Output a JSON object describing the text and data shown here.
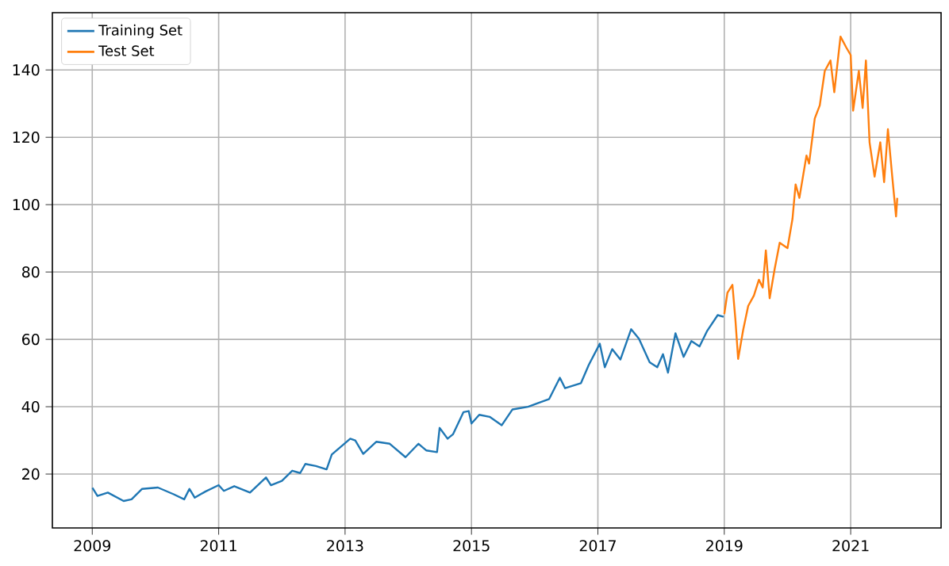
{
  "chart_data": {
    "type": "line",
    "xlim": [
      "2008-05-15",
      "2022-06-07"
    ],
    "ylim": [
      4,
      157
    ],
    "xticks": [
      "2009",
      "2011",
      "2013",
      "2015",
      "2017",
      "2019",
      "2021"
    ],
    "yticks": [
      20,
      40,
      60,
      80,
      100,
      120,
      140
    ],
    "grid": true,
    "legend": "top left",
    "marker": "none",
    "line_style": "solid",
    "series": [
      {
        "name": "Training Set",
        "color": "#1f77b4",
        "x": [
          "2009-01-02",
          "2009-01-31",
          "2009-04-01",
          "2009-07-01",
          "2009-08-16",
          "2009-10-16",
          "2010-01-15",
          "2010-04-16",
          "2010-06-16",
          "2010-07-16",
          "2010-08-16",
          "2010-10-16",
          "2011-01-01",
          "2011-01-31",
          "2011-04-01",
          "2011-07-01",
          "2011-10-01",
          "2011-10-30",
          "2012-01-01",
          "2012-03-01",
          "2012-04-16",
          "2012-05-16",
          "2012-07-16",
          "2012-09-16",
          "2012-10-16",
          "2013-01-31",
          "2013-03-01",
          "2013-04-16",
          "2013-07-01",
          "2013-09-16",
          "2013-12-16",
          "2014-03-01",
          "2014-04-16",
          "2014-06-16",
          "2014-07-01",
          "2014-08-16",
          "2014-09-16",
          "2014-11-16",
          "2014-12-16",
          "2015-01-01",
          "2015-02-15",
          "2015-04-16",
          "2015-06-25",
          "2015-08-26",
          "2015-11-24",
          "2016-03-25",
          "2016-05-26",
          "2016-06-25",
          "2016-09-25",
          "2016-11-10",
          "2017-01-12",
          "2017-02-10",
          "2017-03-25",
          "2017-05-11",
          "2017-07-12",
          "2017-08-26",
          "2017-10-27",
          "2017-12-10",
          "2018-01-12",
          "2018-02-10",
          "2018-03-25",
          "2018-05-11",
          "2018-06-25",
          "2018-08-11",
          "2018-09-25",
          "2018-11-24",
          "2018-12-28"
        ],
        "values": [
          15.9,
          13.5,
          14.5,
          12.0,
          12.5,
          15.6,
          16.0,
          14.0,
          12.5,
          15.6,
          13.0,
          14.8,
          16.7,
          15.0,
          16.4,
          14.5,
          19.0,
          16.7,
          18.0,
          21.0,
          20.3,
          23.0,
          22.4,
          21.4,
          25.8,
          30.5,
          30.0,
          26.0,
          29.6,
          29.0,
          25.0,
          29.0,
          27.0,
          26.5,
          33.7,
          30.5,
          31.8,
          38.4,
          38.7,
          35.0,
          37.6,
          37.0,
          34.5,
          39.2,
          40.0,
          42.3,
          48.6,
          45.5,
          47.0,
          52.5,
          58.7,
          51.7,
          57.1,
          54.0,
          63.0,
          60.2,
          53.2,
          51.7,
          55.6,
          50.1,
          61.8,
          54.8,
          59.5,
          57.9,
          62.6,
          67.2,
          66.7
        ]
      },
      {
        "name": "Test Set",
        "color": "#ff7f0e",
        "x": [
          "2019-01-01",
          "2019-01-19",
          "2019-02-17",
          "2019-03-06",
          "2019-03-22",
          "2019-04-20",
          "2019-05-19",
          "2019-06-21",
          "2019-07-20",
          "2019-08-11",
          "2019-08-29",
          "2019-09-20",
          "2019-10-19",
          "2019-11-17",
          "2020-01-01",
          "2020-01-30",
          "2020-02-17",
          "2020-03-10",
          "2020-04-20",
          "2020-05-05",
          "2020-06-07",
          "2020-07-06",
          "2020-08-04",
          "2020-09-06",
          "2020-09-28",
          "2020-11-03",
          "2020-12-06",
          "2021-01-01",
          "2021-01-15",
          "2021-02-17",
          "2021-03-11",
          "2021-03-30",
          "2021-04-20",
          "2021-05-19",
          "2021-06-21",
          "2021-07-13",
          "2021-08-04",
          "2021-08-29",
          "2021-09-20",
          "2021-09-27"
        ],
        "values": [
          67.5,
          73.8,
          76.2,
          66.0,
          54.2,
          62.8,
          69.9,
          73.0,
          77.7,
          75.4,
          86.4,
          72.2,
          80.9,
          88.7,
          87.1,
          95.8,
          106.0,
          102.0,
          114.6,
          112.2,
          125.6,
          129.5,
          139.7,
          142.8,
          133.4,
          149.9,
          146.7,
          144.4,
          127.9,
          139.7,
          128.7,
          142.8,
          118.5,
          108.3,
          118.5,
          106.7,
          122.4,
          108.3,
          96.5,
          102.0
        ]
      }
    ]
  }
}
